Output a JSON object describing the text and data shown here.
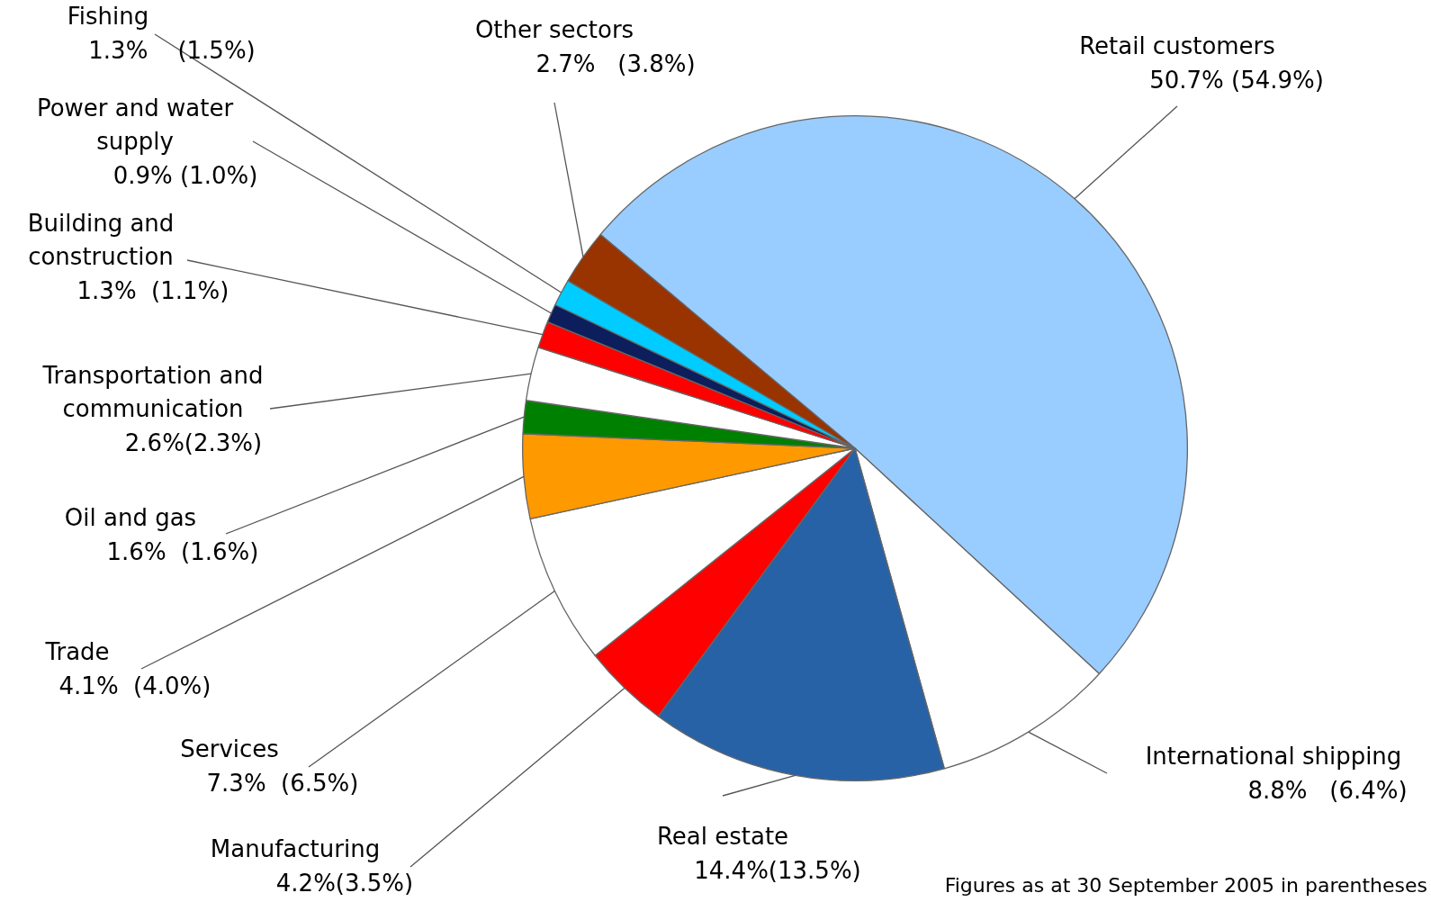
{
  "chart_data": {
    "type": "pie",
    "categories": [
      "Retail customers",
      "International shipping",
      "Real estate",
      "Manufacturing",
      "Services",
      "Trade",
      "Oil and gas",
      "Transportation and communication",
      "Building and construction",
      "Power and water supply",
      "Fishing",
      "Other sectors"
    ],
    "values": [
      50.7,
      8.8,
      14.4,
      4.2,
      7.3,
      4.1,
      1.6,
      2.6,
      1.3,
      0.9,
      1.3,
      2.7
    ],
    "colors": [
      "#99ccff",
      "#ffffff",
      "#2862a6",
      "#ff0000",
      "#ffffff",
      "#ff9900",
      "#008000",
      "#ffffff",
      "#ff0000",
      "#0c1e5b",
      "#00ccff",
      "#993300"
    ],
    "value_labels": [
      "50.7% (54.9%)",
      "8.8%   (6.4%)",
      "14.4%(13.5%)",
      "4.2%(3.5%)",
      "7.3%  (6.5%)",
      "4.1%  (4.0%)",
      "1.6%  (1.6%)",
      "2.6%(2.3%)",
      "1.3%  (1.1%)",
      "0.9% (1.0%)",
      "1.3%    (1.5%)",
      "2.7%   (3.8%)"
    ],
    "legend": false,
    "annotations": [
      "Figures as at 30 September 2005 in parentheses"
    ]
  }
}
